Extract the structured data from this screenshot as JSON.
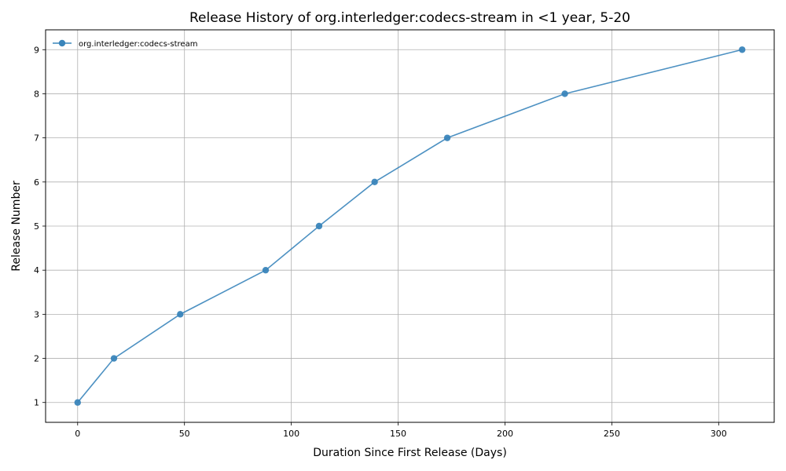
{
  "chart_data": {
    "type": "line",
    "title": "Release History of org.interledger:codecs-stream in <1 year, 5-20",
    "xlabel": "Duration Since First Release (Days)",
    "ylabel": "Release Number",
    "xlim": [
      -15,
      326
    ],
    "ylim": [
      0.55,
      9.45
    ],
    "xticks": [
      0,
      50,
      100,
      150,
      200,
      250,
      300
    ],
    "yticks": [
      1,
      2,
      3,
      4,
      5,
      6,
      7,
      8,
      9
    ],
    "grid": true,
    "legend_position": "top-left",
    "series": [
      {
        "name": "org.interledger:codecs-stream",
        "color": "#3a85bb",
        "marker": "circle",
        "x": [
          0,
          17,
          48,
          88,
          113,
          139,
          173,
          228,
          311
        ],
        "y": [
          1,
          2,
          3,
          4,
          5,
          6,
          7,
          8,
          9
        ]
      }
    ]
  }
}
